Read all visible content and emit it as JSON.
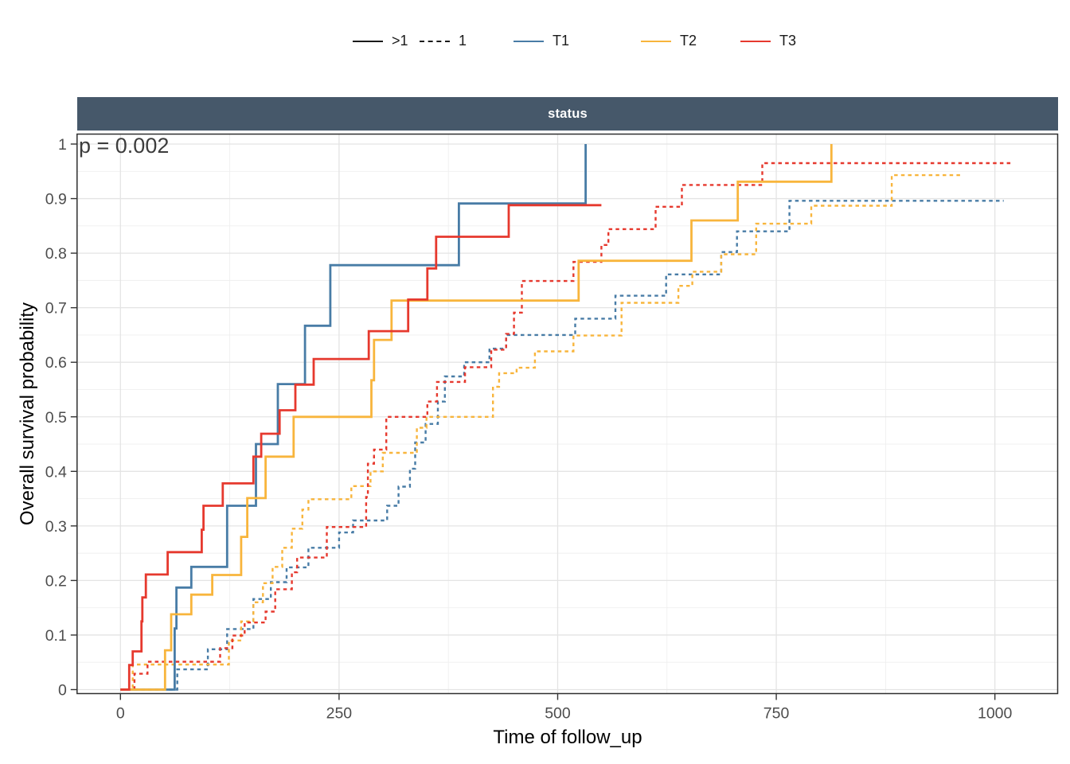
{
  "facet": {
    "label": "status",
    "bg_color": "#46586A"
  },
  "annotation": {
    "p_value": "p = 0.002"
  },
  "legend": {
    "linetype": {
      "items": [
        {
          "label": ">1",
          "style": "solid"
        },
        {
          "label": "1",
          "style": "dashed"
        }
      ]
    },
    "color": {
      "items": [
        {
          "label": "T1",
          "color": "#487CA6"
        },
        {
          "label": "T2",
          "color": "#F8B53C"
        },
        {
          "label": "T3",
          "color": "#E6392E"
        }
      ]
    }
  },
  "colors": {
    "blue": "#487CA6",
    "orange": "#F8B53C",
    "red": "#E6392E",
    "grid_major": "#E4E4E4",
    "grid_minor": "#EFEFEF",
    "panel_border": "#2F2F2F",
    "tick_label": "#4D4D4D",
    "strip_bg": "#46586A"
  },
  "chart_data": {
    "type": "line",
    "subtype": "kaplan-meier-step-event-curves",
    "title": "",
    "xlabel": "Time of follow_up",
    "ylabel": "Overall survival probability",
    "xlim": [
      -49,
      1071
    ],
    "ylim": [
      0,
      1
    ],
    "x_ticks": [
      0,
      250,
      500,
      750,
      1000
    ],
    "x_tick_labels": [
      "0",
      "250",
      "500",
      "750",
      "1000"
    ],
    "x_minor": [
      125,
      375,
      625,
      875
    ],
    "y_ticks": [
      0,
      0.1,
      0.2,
      0.3,
      0.4,
      0.5,
      0.6,
      0.7,
      0.8,
      0.9,
      1
    ],
    "y_tick_labels": [
      "0",
      "0.1",
      "0.2",
      "0.3",
      "0.4",
      "0.5",
      "0.6",
      "0.7",
      "0.8",
      "0.9",
      "1"
    ],
    "y_minor": [
      0.05,
      0.15,
      0.25,
      0.35,
      0.45,
      0.55,
      0.65,
      0.75,
      0.85,
      0.95
    ],
    "grid": true,
    "legend_position": "top",
    "p_value": 0.002,
    "series": [
      {
        "name": "T1",
        "status": ">1",
        "linetype": "solid",
        "color": "#487CA6",
        "points": [
          [
            62,
            0.112
          ],
          [
            64,
            0.187
          ],
          [
            81,
            0.225
          ],
          [
            122,
            0.337
          ],
          [
            155,
            0.45
          ],
          [
            180,
            0.56
          ],
          [
            211,
            0.667
          ],
          [
            240,
            0.778
          ],
          [
            387,
            0.891
          ],
          [
            532,
            1.0
          ]
        ],
        "end": 532
      },
      {
        "name": "T2",
        "status": ">1",
        "linetype": "solid",
        "color": "#F8B53C",
        "points": [
          [
            51,
            0.072
          ],
          [
            58,
            0.138
          ],
          [
            81,
            0.174
          ],
          [
            105,
            0.21
          ],
          [
            138,
            0.28
          ],
          [
            145,
            0.351
          ],
          [
            166,
            0.427
          ],
          [
            198,
            0.5
          ],
          [
            287,
            0.567
          ],
          [
            290,
            0.641
          ],
          [
            310,
            0.713
          ],
          [
            524,
            0.786
          ],
          [
            653,
            0.86
          ],
          [
            706,
            0.931
          ],
          [
            813,
            1.0
          ]
        ],
        "end": 813
      },
      {
        "name": "T3",
        "status": ">1",
        "linetype": "solid",
        "color": "#E6392E",
        "points": [
          [
            10,
            0.045
          ],
          [
            14,
            0.07
          ],
          [
            24,
            0.125
          ],
          [
            25,
            0.169
          ],
          [
            29,
            0.211
          ],
          [
            54,
            0.252
          ],
          [
            93,
            0.293
          ],
          [
            95,
            0.337
          ],
          [
            117,
            0.378
          ],
          [
            152,
            0.427
          ],
          [
            161,
            0.469
          ],
          [
            182,
            0.512
          ],
          [
            200,
            0.559
          ],
          [
            221,
            0.606
          ],
          [
            284,
            0.657
          ],
          [
            329,
            0.715
          ],
          [
            351,
            0.772
          ],
          [
            361,
            0.83
          ],
          [
            444,
            0.888
          ]
        ],
        "end": 550
      },
      {
        "name": "T1",
        "status": "1",
        "linetype": "dashed",
        "color": "#487CA6",
        "points": [
          [
            65,
            0.037
          ],
          [
            100,
            0.074
          ],
          [
            122,
            0.111
          ],
          [
            152,
            0.166
          ],
          [
            172,
            0.197
          ],
          [
            190,
            0.224
          ],
          [
            215,
            0.26
          ],
          [
            250,
            0.288
          ],
          [
            266,
            0.31
          ],
          [
            305,
            0.337
          ],
          [
            318,
            0.372
          ],
          [
            331,
            0.405
          ],
          [
            337,
            0.453
          ],
          [
            349,
            0.487
          ],
          [
            363,
            0.528
          ],
          [
            371,
            0.574
          ],
          [
            393,
            0.6
          ],
          [
            422,
            0.625
          ],
          [
            441,
            0.65
          ],
          [
            520,
            0.68
          ],
          [
            566,
            0.722
          ],
          [
            624,
            0.761
          ],
          [
            687,
            0.802
          ],
          [
            705,
            0.84
          ],
          [
            765,
            0.896
          ]
        ],
        "end": 1010
      },
      {
        "name": "T2",
        "status": "1",
        "linetype": "dashed",
        "color": "#F8B53C",
        "points": [
          [
            14,
            0.046
          ],
          [
            124,
            0.09
          ],
          [
            138,
            0.125
          ],
          [
            152,
            0.16
          ],
          [
            163,
            0.195
          ],
          [
            174,
            0.225
          ],
          [
            185,
            0.26
          ],
          [
            196,
            0.295
          ],
          [
            208,
            0.33
          ],
          [
            215,
            0.349
          ],
          [
            264,
            0.373
          ],
          [
            286,
            0.4
          ],
          [
            300,
            0.434
          ],
          [
            339,
            0.48
          ],
          [
            350,
            0.5
          ],
          [
            426,
            0.555
          ],
          [
            433,
            0.58
          ],
          [
            453,
            0.59
          ],
          [
            474,
            0.62
          ],
          [
            518,
            0.649
          ],
          [
            573,
            0.709
          ],
          [
            638,
            0.74
          ],
          [
            654,
            0.766
          ],
          [
            687,
            0.798
          ],
          [
            727,
            0.854
          ],
          [
            790,
            0.887
          ],
          [
            882,
            0.943
          ]
        ],
        "end": 964
      },
      {
        "name": "T3",
        "status": "1",
        "linetype": "dashed",
        "color": "#E6392E",
        "points": [
          [
            16,
            0.029
          ],
          [
            31,
            0.051
          ],
          [
            114,
            0.076
          ],
          [
            128,
            0.099
          ],
          [
            142,
            0.123
          ],
          [
            166,
            0.143
          ],
          [
            177,
            0.184
          ],
          [
            196,
            0.215
          ],
          [
            202,
            0.242
          ],
          [
            236,
            0.298
          ],
          [
            281,
            0.353
          ],
          [
            283,
            0.414
          ],
          [
            290,
            0.44
          ],
          [
            304,
            0.5
          ],
          [
            351,
            0.528
          ],
          [
            362,
            0.564
          ],
          [
            394,
            0.591
          ],
          [
            424,
            0.623
          ],
          [
            441,
            0.652
          ],
          [
            450,
            0.691
          ],
          [
            459,
            0.749
          ],
          [
            518,
            0.784
          ],
          [
            550,
            0.815
          ],
          [
            558,
            0.844
          ],
          [
            612,
            0.885
          ],
          [
            642,
            0.925
          ],
          [
            734,
            0.965
          ]
        ],
        "end": 1019
      }
    ]
  }
}
